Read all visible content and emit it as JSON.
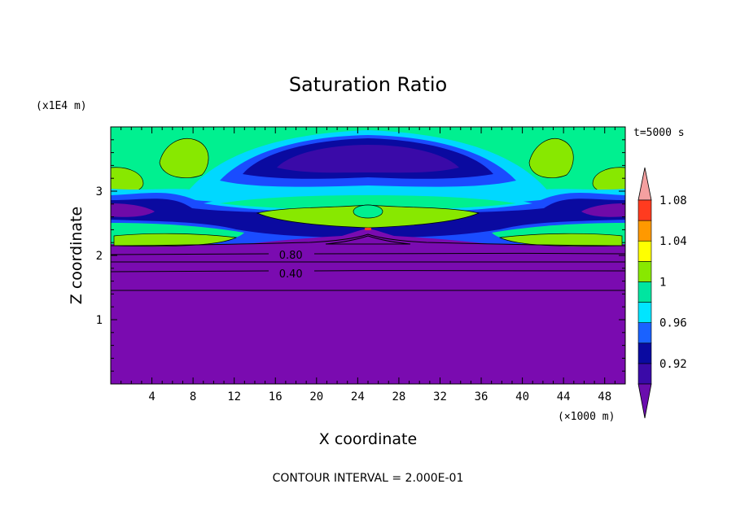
{
  "chart_data": {
    "type": "heatmap",
    "title": "Saturation Ratio",
    "xlabel": "X coordinate",
    "ylabel": "Z coordinate",
    "x_unit": "(×1000 m)",
    "y_unit": "(x1E4 m)",
    "time_label": "t=5000 s",
    "footer": "CONTOUR INTERVAL = 2.000E-01",
    "xlim": [
      0,
      50
    ],
    "ylim": [
      0,
      4
    ],
    "x_ticks": [
      4,
      8,
      12,
      16,
      20,
      24,
      28,
      32,
      36,
      40,
      44,
      48
    ],
    "y_ticks": [
      1,
      2,
      3
    ],
    "contour_labels": [
      {
        "text": "0.80",
        "x": 17.5,
        "y": 2.01
      },
      {
        "text": "0.40",
        "x": 17.5,
        "y": 1.72
      }
    ],
    "colorbar": {
      "tick_labels": [
        "0.92",
        "0.96",
        "1",
        "1.04",
        "1.08"
      ],
      "levels": [
        0.9,
        0.92,
        0.94,
        0.96,
        0.98,
        1.0,
        1.02,
        1.04,
        1.06,
        1.08,
        1.1
      ],
      "colors": [
        "#6a0dad",
        "#3a0aa8",
        "#0a0aa0",
        "#1a62ff",
        "#00e5ff",
        "#00e5a0",
        "#88e800",
        "#ffff00",
        "#ff9900",
        "#ff3b1f",
        "#f4a0a0"
      ]
    },
    "layers": {
      "low_purple": "#7a0bb0",
      "band": [
        "#6f0aa8",
        "#2a0aa0",
        "#0a2ad0",
        "#00d8ff",
        "#00f090",
        "#88e800"
      ]
    }
  }
}
